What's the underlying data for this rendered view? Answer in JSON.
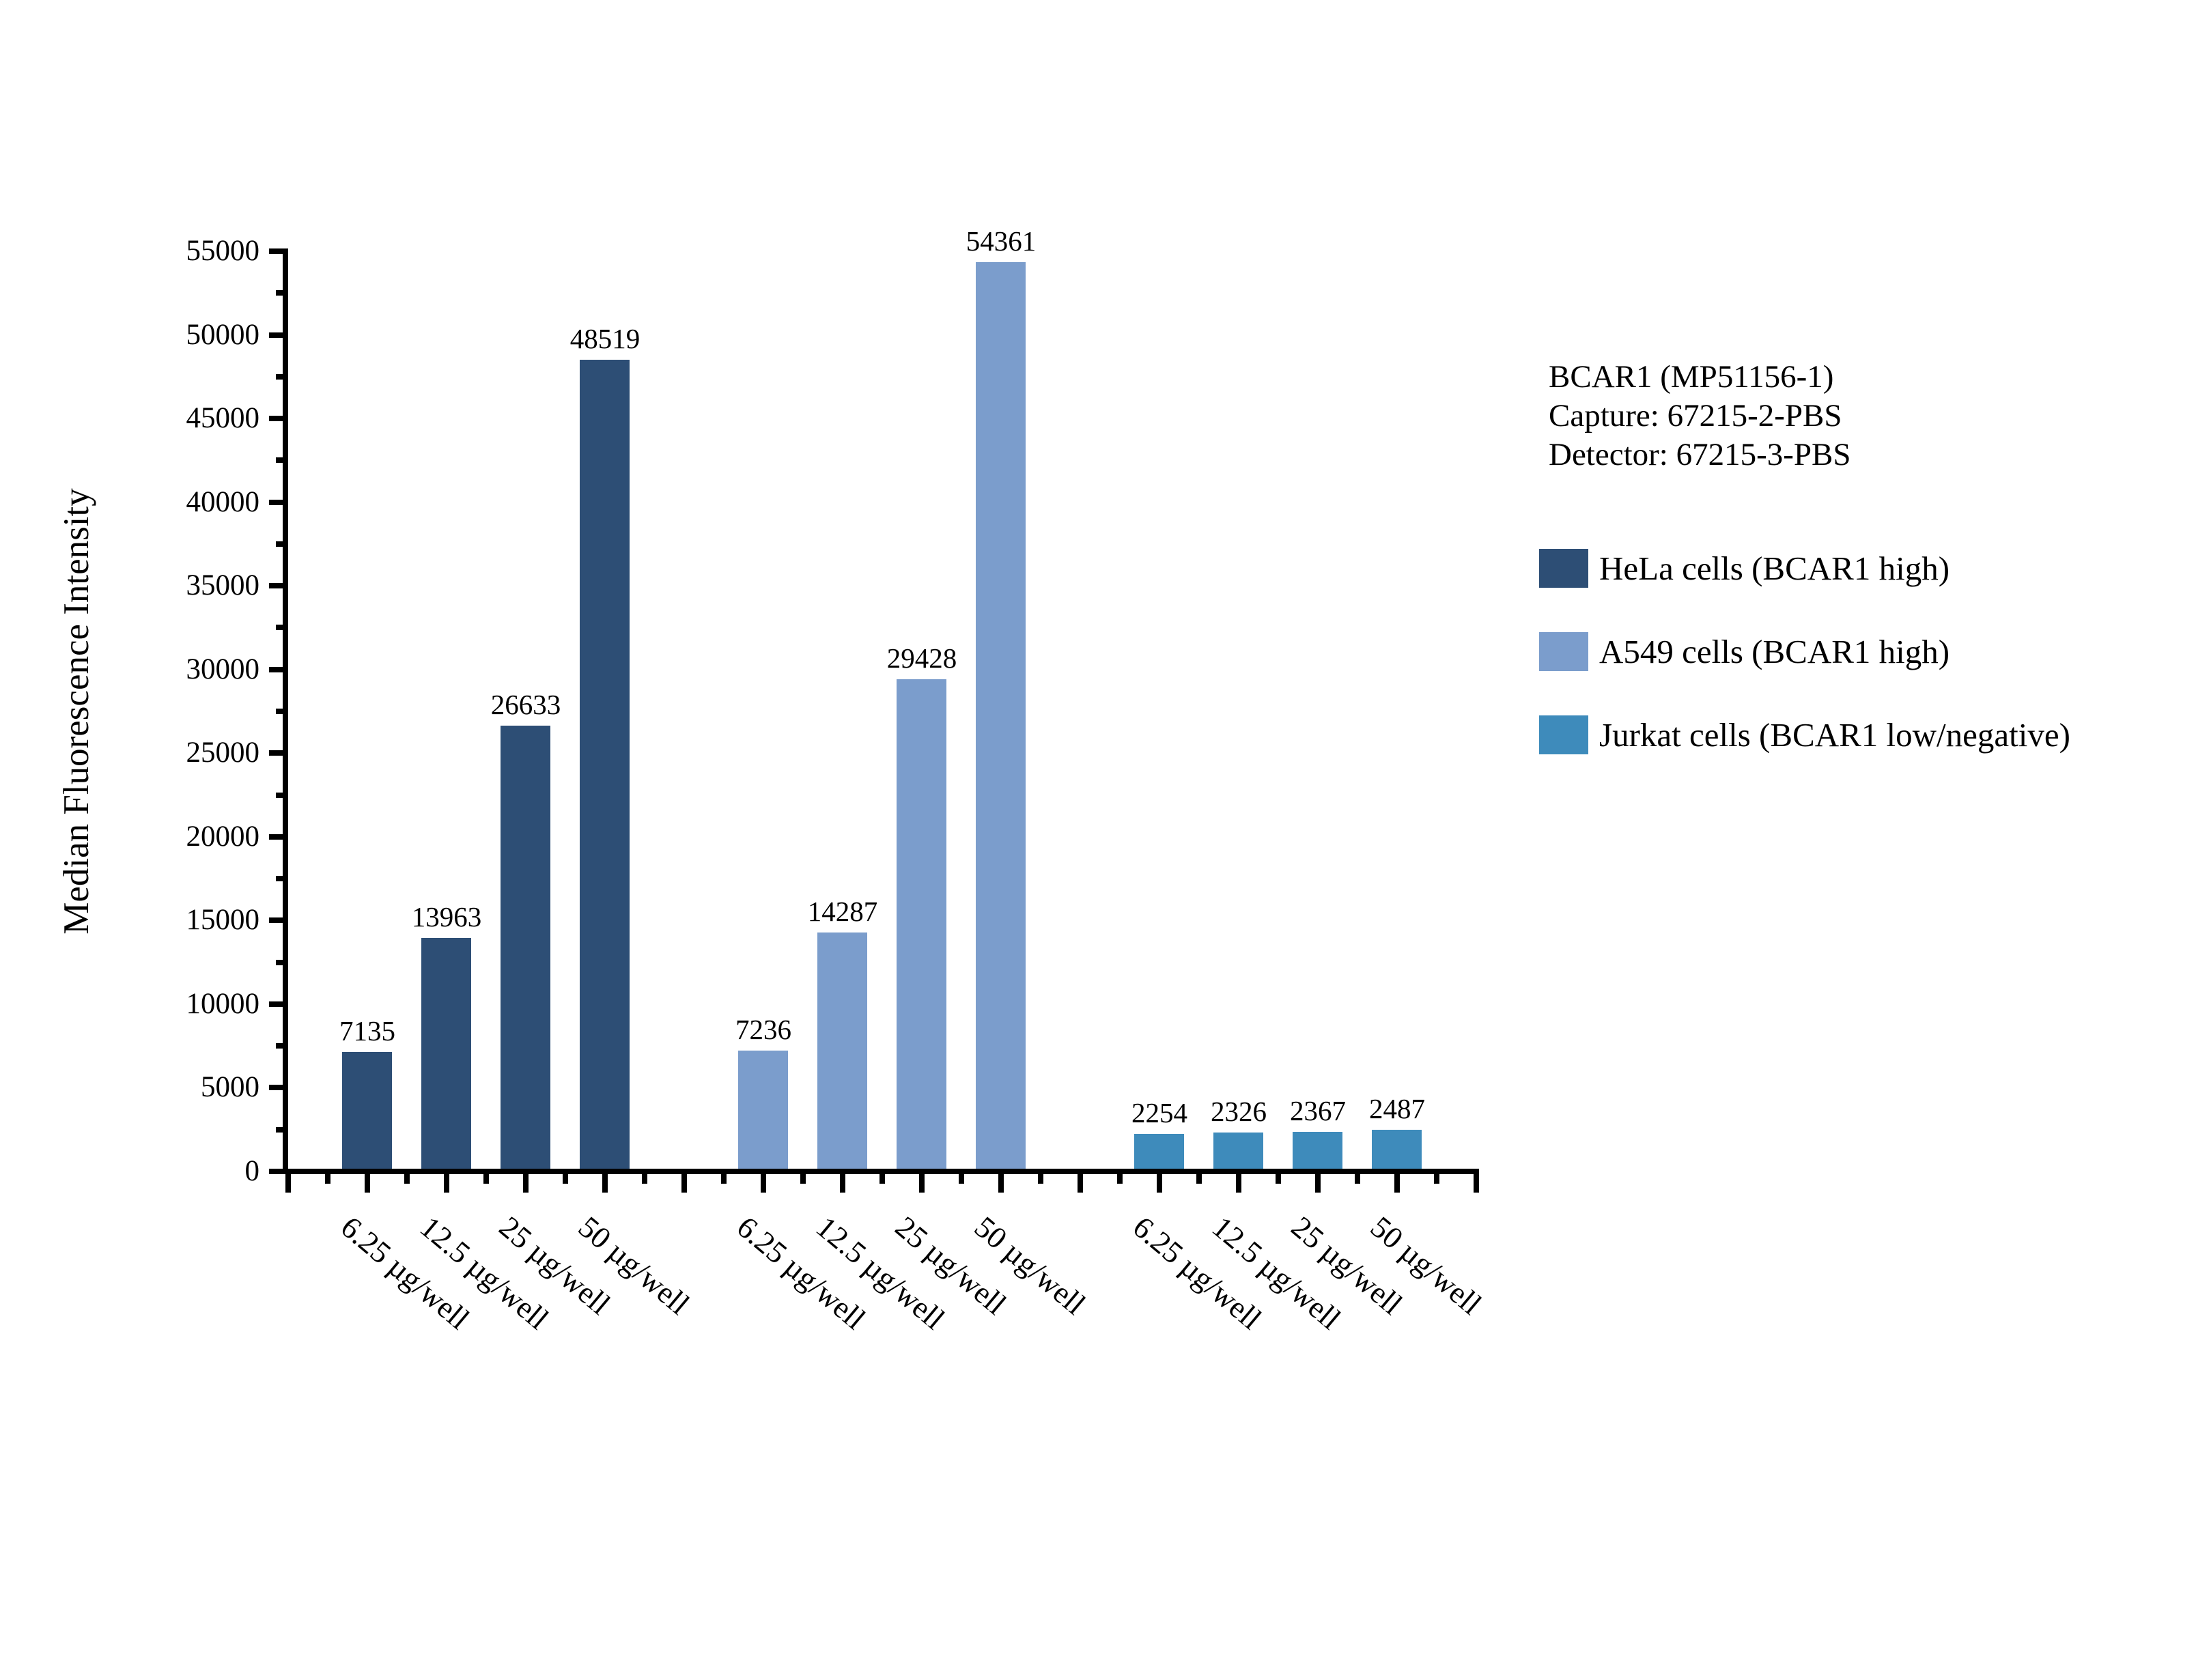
{
  "figure": {
    "background": "#ffffff",
    "axis_color": "#000000",
    "text_color": "#000000"
  },
  "annotation": {
    "line1": "BCAR1 (MP51156-1)",
    "line2": "Capture: 67215-2-PBS",
    "line3": "Detector: 67215-3-PBS"
  },
  "chart_data": {
    "type": "bar",
    "title": "",
    "xlabel": "",
    "ylabel": "Median Fluorescence Intensity",
    "ylim": [
      0,
      55000
    ],
    "yticks": [
      0,
      5000,
      10000,
      15000,
      20000,
      25000,
      30000,
      35000,
      40000,
      45000,
      50000,
      55000
    ],
    "ytick_minor_step": 2500,
    "grid": false,
    "legend_position": "right",
    "bar_value_labels": true,
    "categories": [
      "6.25 µg/well",
      "12.5 µg/well",
      "25 µg/well",
      "50 µg/well"
    ],
    "series": [
      {
        "name": "HeLa cells (BCAR1 high)",
        "color": "#2d4e75",
        "values": [
          7135,
          13963,
          26633,
          48519
        ]
      },
      {
        "name": "A549 cells (BCAR1 high)",
        "color": "#7b9dcc",
        "values": [
          7236,
          14287,
          29428,
          54361
        ]
      },
      {
        "name": "Jurkat cells (BCAR1 low/negative)",
        "color": "#3e8bbb",
        "values": [
          2254,
          2326,
          2367,
          2487
        ]
      }
    ]
  }
}
